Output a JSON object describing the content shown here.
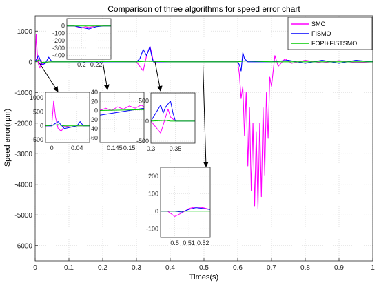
{
  "chart_data": {
    "type": "line",
    "title": "Comparison of three algorithms for speed error chart",
    "xlabel": "Times(s)",
    "ylabel": "Speed error(rpm)",
    "xlim": [
      0,
      1
    ],
    "ylim": [
      -6500,
      1500
    ],
    "xticks": [
      "0",
      "0.1",
      "0.2",
      "0.3",
      "0.4",
      "0.5",
      "0.6",
      "0.7",
      "0.8",
      "0.9",
      "1"
    ],
    "yticks": [
      "1000",
      "0",
      "-1000",
      "-2000",
      "-3000",
      "-4000",
      "-5000",
      "-6000"
    ],
    "grid": true,
    "legend_position": "top-right",
    "series": [
      {
        "name": "SMO",
        "color": "#ff00ff",
        "x": [
          0,
          0.003,
          0.006,
          0.01,
          0.014,
          0.018,
          0.022,
          0.03,
          0.04,
          0.05,
          0.1,
          0.2,
          0.3,
          0.31,
          0.32,
          0.33,
          0.34,
          0.345,
          0.35,
          0.36,
          0.4,
          0.5,
          0.6,
          0.605,
          0.61,
          0.615,
          0.62,
          0.625,
          0.63,
          0.635,
          0.64,
          0.645,
          0.65,
          0.655,
          0.66,
          0.665,
          0.67,
          0.675,
          0.68,
          0.685,
          0.69,
          0.695,
          0.7,
          0.71,
          0.72,
          0.74,
          0.76,
          0.8,
          0.85,
          0.9,
          0.95,
          1.0
        ],
        "y": [
          0,
          900,
          300,
          -100,
          -200,
          50,
          -100,
          -50,
          0,
          0,
          0,
          30,
          0,
          -150,
          -300,
          200,
          500,
          300,
          0,
          0,
          0,
          0,
          0,
          -400,
          -1200,
          -800,
          -2400,
          -1000,
          -3400,
          -1500,
          -4200,
          -2000,
          -4700,
          -2300,
          -4800,
          -2000,
          -4400,
          -1500,
          -3700,
          -1000,
          -2500,
          -500,
          -800,
          200,
          -150,
          100,
          -50,
          50,
          -40,
          40,
          -30,
          0
        ]
      },
      {
        "name": "FISMO",
        "color": "#0000ff",
        "x": [
          0,
          0.01,
          0.02,
          0.03,
          0.04,
          0.05,
          0.08,
          0.1,
          0.2,
          0.3,
          0.31,
          0.32,
          0.33,
          0.34,
          0.345,
          0.35,
          0.36,
          0.4,
          0.5,
          0.6,
          0.605,
          0.61,
          0.615,
          0.62,
          0.63,
          0.7,
          0.75,
          0.8,
          0.85,
          0.9,
          0.95,
          1.0
        ],
        "y": [
          0,
          200,
          -100,
          -50,
          150,
          0,
          0,
          0,
          0,
          0,
          100,
          400,
          200,
          500,
          200,
          0,
          0,
          0,
          0,
          0,
          -100,
          -300,
          300,
          100,
          0,
          0,
          50,
          -50,
          50,
          -50,
          50,
          0
        ]
      },
      {
        "name": "FOPI+FISTSMO",
        "color": "#00cc00",
        "x": [
          0,
          0.01,
          0.02,
          0.05,
          0.1,
          0.2,
          0.3,
          0.33,
          0.4,
          0.5,
          0.6,
          0.62,
          0.7,
          0.8,
          0.9,
          1.0
        ],
        "y": [
          0,
          60,
          -20,
          0,
          0,
          5,
          0,
          20,
          0,
          0,
          0,
          30,
          0,
          0,
          0,
          0
        ]
      }
    ],
    "insets": [
      {
        "xlim": [
          0.18,
          0.24
        ],
        "ylim": [
          -450,
          100
        ],
        "xticks": [
          "0.2",
          "0.22"
        ],
        "yticks": [
          "0",
          "-100",
          "-200",
          "-300",
          "-400"
        ],
        "series": [
          {
            "color": "#ff00ff",
            "x": [
              0.18,
              0.19,
              0.2,
              0.205,
              0.21,
              0.22,
              0.23,
              0.24
            ],
            "y": [
              0,
              0,
              -30,
              -10,
              -20,
              0,
              0,
              0
            ]
          },
          {
            "color": "#0000ff",
            "x": [
              0.18,
              0.19,
              0.2,
              0.21,
              0.22,
              0.23,
              0.24
            ],
            "y": [
              0,
              0,
              -20,
              -40,
              -10,
              0,
              0
            ]
          },
          {
            "color": "#00cc00",
            "x": [
              0.18,
              0.24
            ],
            "y": [
              0,
              0
            ]
          }
        ]
      },
      {
        "xlim": [
          -0.01,
          0.06
        ],
        "ylim": [
          -600,
          1200
        ],
        "xticks": [
          "0",
          "0.04"
        ],
        "yticks": [
          "1000",
          "500",
          "0",
          "-500"
        ],
        "series": [
          {
            "color": "#ff00ff",
            "x": [
              -0.01,
              0,
              0.003,
              0.006,
              0.01,
              0.015,
              0.02,
              0.03,
              0.04,
              0.06
            ],
            "y": [
              0,
              0,
              900,
              300,
              -100,
              -200,
              0,
              -50,
              0,
              0
            ]
          },
          {
            "color": "#0000ff",
            "x": [
              -0.01,
              0,
              0.01,
              0.02,
              0.03,
              0.04,
              0.045,
              0.05,
              0.06
            ],
            "y": [
              0,
              0,
              150,
              -100,
              -50,
              0,
              150,
              0,
              0
            ]
          },
          {
            "color": "#00cc00",
            "x": [
              -0.01,
              0.01,
              0.02,
              0.06
            ],
            "y": [
              0,
              40,
              0,
              0
            ]
          }
        ]
      },
      {
        "xlim": [
          0.14,
          0.155
        ],
        "ylim": [
          -70,
          40
        ],
        "xticks": [
          "0.145",
          "0.15"
        ],
        "yticks": [
          "40",
          "20",
          "0",
          "-20",
          "-40",
          "-60"
        ],
        "series": [
          {
            "color": "#ff00ff",
            "x": [
              0.14,
              0.142,
              0.144,
              0.146,
              0.148,
              0.15,
              0.152,
              0.154,
              0.155
            ],
            "y": [
              0,
              5,
              0,
              8,
              3,
              10,
              5,
              12,
              8
            ]
          },
          {
            "color": "#0000ff",
            "x": [
              0.14,
              0.145,
              0.15,
              0.155
            ],
            "y": [
              -10,
              -5,
              0,
              5
            ]
          },
          {
            "color": "#00cc00",
            "x": [
              0.14,
              0.155
            ],
            "y": [
              0,
              2
            ]
          }
        ]
      },
      {
        "xlim": [
          0.3,
          0.39
        ],
        "ylim": [
          -550,
          700
        ],
        "xticks": [
          "0.3",
          "0.35"
        ],
        "yticks": [
          "500",
          "0",
          "-500"
        ],
        "series": [
          {
            "color": "#ff00ff",
            "x": [
              0.3,
              0.31,
              0.32,
              0.33,
              0.335,
              0.34,
              0.35,
              0.36,
              0.39
            ],
            "y": [
              0,
              -150,
              -300,
              100,
              300,
              100,
              0,
              0,
              0
            ]
          },
          {
            "color": "#0000ff",
            "x": [
              0.3,
              0.31,
              0.32,
              0.325,
              0.33,
              0.34,
              0.345,
              0.35,
              0.36,
              0.39
            ],
            "y": [
              0,
              200,
              400,
              200,
              350,
              500,
              200,
              0,
              0,
              0
            ]
          },
          {
            "color": "#00cc00",
            "x": [
              0.3,
              0.33,
              0.34,
              0.39
            ],
            "y": [
              0,
              20,
              0,
              0
            ]
          }
        ]
      },
      {
        "xlim": [
          0.49,
          0.525
        ],
        "ylim": [
          -150,
          250
        ],
        "xticks": [
          "0.5",
          "0.51",
          "0.52"
        ],
        "yticks": [
          "200",
          "100",
          "0",
          "-100"
        ],
        "series": [
          {
            "color": "#ff00ff",
            "x": [
              0.49,
              0.495,
              0.5,
              0.505,
              0.51,
              0.515,
              0.52,
              0.525
            ],
            "y": [
              0,
              0,
              -30,
              -10,
              15,
              25,
              20,
              10
            ]
          },
          {
            "color": "#0000ff",
            "x": [
              0.49,
              0.5,
              0.505,
              0.51,
              0.515,
              0.52,
              0.525
            ],
            "y": [
              0,
              0,
              -5,
              10,
              20,
              15,
              10
            ]
          },
          {
            "color": "#00cc00",
            "x": [
              0.49,
              0.525
            ],
            "y": [
              0,
              0
            ]
          }
        ]
      }
    ]
  }
}
